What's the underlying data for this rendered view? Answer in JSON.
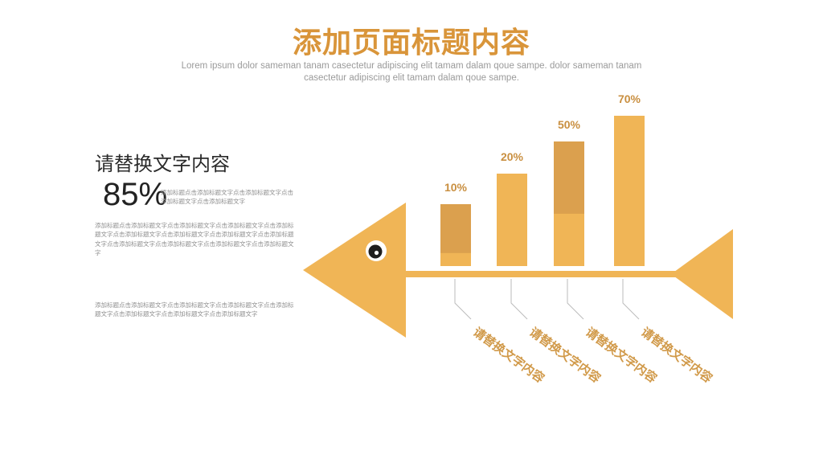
{
  "header": {
    "title": "添加页面标题内容",
    "subtitle": "Lorem ipsum dolor sameman tanam casectetur adipiscing elit tamam dalam qoue sampe. dolor sameman tanam casectetur adipiscing elit tamam dalam qoue sampe."
  },
  "left_panel": {
    "heading": "请替换文字内容",
    "percent": "85%",
    "text_1": "添加标题点击添加标题文字点击添加标题文字点击添加标题文字点击添加标题文字",
    "text_2": "添加标题点击添加标题文字点击添加标题文字点击添加标题文字点击添加标题文字点击添加标题文字点击添加标题文字点击添加标题文字点击添加标题文字点击添加标题文字点击添加标题文字点击添加标题文字点击添加标题文字",
    "text_3": "添加标题点击添加标题文字点击添加标题文字点击添加标题文字点击添加标题文字点击添加标题文字点击添加标题文字点击添加标题文字"
  },
  "bone_labels": [
    "请替换文字内容",
    "请替换文字内容",
    "请替换文字内容",
    "请替换文字内容"
  ],
  "colors": {
    "accent": "#f0b556",
    "accent_dark": "#dba04e",
    "title": "#d9953a",
    "bone_label": "#d19a4a",
    "percent_label": "#c98f40",
    "line_gray": "#bbbbbb"
  },
  "chart_data": {
    "type": "bar",
    "categories": [
      "",
      "",
      "",
      ""
    ],
    "values": [
      10,
      20,
      50,
      70
    ],
    "value_labels": [
      "10%",
      "20%",
      "50%",
      "70%"
    ],
    "dark_portion": [
      0.79,
      0,
      0.58,
      0
    ],
    "ylim": [
      0,
      70
    ],
    "grid": false,
    "legend": "none"
  }
}
